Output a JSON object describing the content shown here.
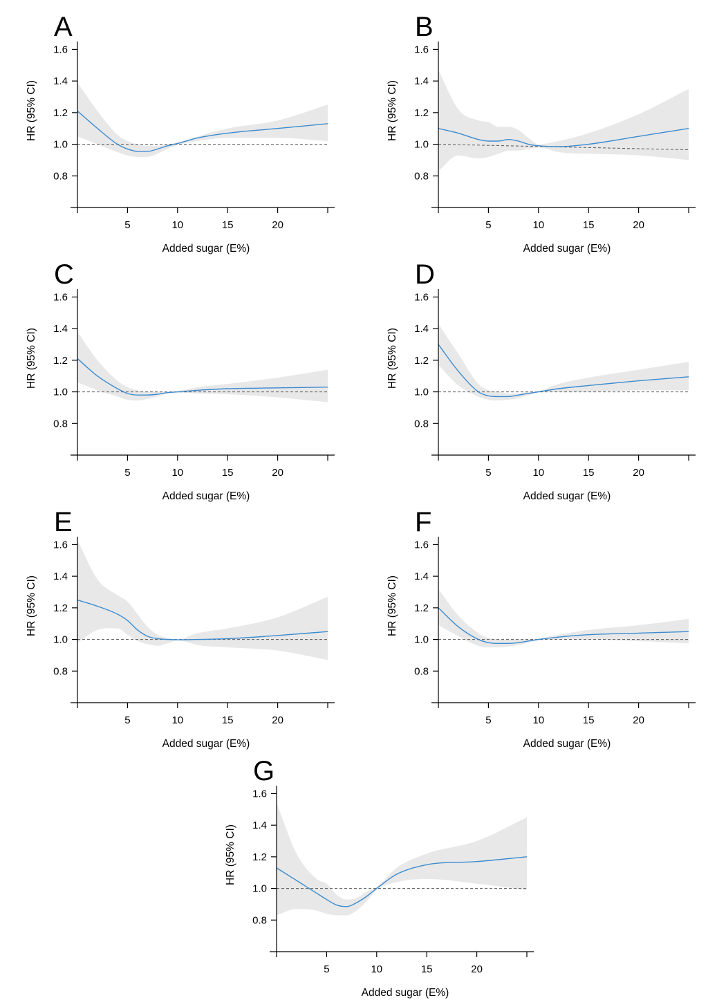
{
  "chart_data": [
    {
      "type": "line",
      "label": "A",
      "xlabel": "Added sugar (E%)",
      "ylabel": "HR (95% CI)",
      "xlim": [
        0,
        25
      ],
      "ylim": [
        0.6,
        1.65
      ],
      "xticks": [
        5,
        10,
        15,
        20
      ],
      "xtick_labels": [
        "5",
        "10",
        "15",
        "20"
      ],
      "yticks": [
        0.8,
        1.0,
        1.2,
        1.4,
        1.6
      ],
      "ytick_labels": [
        "0.8",
        "1.0",
        "1.2",
        "1.4",
        "1.6"
      ],
      "reference": [
        [
          0,
          1.0
        ],
        [
          25,
          1.0
        ]
      ],
      "series": [
        {
          "name": "HR",
          "x": [
            0,
            2,
            4,
            5,
            6,
            7,
            8,
            9,
            10,
            12,
            15,
            20,
            25
          ],
          "y": [
            1.21,
            1.1,
            1.0,
            0.97,
            0.955,
            0.955,
            0.97,
            0.99,
            1.005,
            1.04,
            1.07,
            1.1,
            1.13
          ]
        },
        {
          "name": "95% CI upper",
          "x": [
            0,
            2,
            4,
            5,
            6,
            7,
            8,
            9,
            10,
            12,
            15,
            20,
            25
          ],
          "y": [
            1.39,
            1.21,
            1.06,
            1.02,
            1.0,
            0.99,
            0.99,
            1.0,
            1.01,
            1.05,
            1.1,
            1.15,
            1.25
          ]
        },
        {
          "name": "95% CI lower",
          "x": [
            0,
            2,
            4,
            5,
            6,
            7,
            8,
            9,
            10,
            12,
            15,
            20,
            25
          ],
          "y": [
            1.05,
            1.0,
            0.95,
            0.93,
            0.92,
            0.92,
            0.94,
            0.97,
            0.995,
            1.02,
            1.04,
            1.04,
            1.02
          ]
        }
      ]
    },
    {
      "type": "line",
      "label": "B",
      "xlabel": "Added sugar (E%)",
      "ylabel": "HR (95% CI)",
      "xlim": [
        0,
        25
      ],
      "ylim": [
        0.6,
        1.65
      ],
      "xticks": [
        5,
        10,
        15,
        20
      ],
      "xtick_labels": [
        "5",
        "10",
        "15",
        "20"
      ],
      "yticks": [
        0.8,
        1.0,
        1.2,
        1.4,
        1.6
      ],
      "ytick_labels": [
        "0.8",
        "1.0",
        "1.2",
        "1.4",
        "1.6"
      ],
      "reference": [
        [
          0,
          1.0
        ],
        [
          25,
          0.965
        ]
      ],
      "series": [
        {
          "name": "HR",
          "x": [
            0,
            2,
            4,
            5,
            6,
            7,
            8,
            9,
            10,
            12,
            15,
            20,
            25
          ],
          "y": [
            1.1,
            1.07,
            1.03,
            1.02,
            1.02,
            1.03,
            1.02,
            1.0,
            0.99,
            0.985,
            1.0,
            1.05,
            1.1
          ]
        },
        {
          "name": "95% CI upper",
          "x": [
            0,
            2,
            4,
            5,
            6,
            7,
            8,
            9,
            10,
            12,
            15,
            20,
            25
          ],
          "y": [
            1.47,
            1.22,
            1.15,
            1.14,
            1.11,
            1.11,
            1.09,
            1.04,
            1.0,
            1.02,
            1.07,
            1.19,
            1.35
          ]
        },
        {
          "name": "95% CI lower",
          "x": [
            0,
            2,
            4,
            5,
            6,
            7,
            8,
            9,
            10,
            12,
            15,
            20,
            25
          ],
          "y": [
            0.83,
            0.93,
            0.91,
            0.92,
            0.94,
            0.96,
            0.96,
            0.97,
            0.98,
            0.95,
            0.94,
            0.93,
            0.9
          ]
        }
      ]
    },
    {
      "type": "line",
      "label": "C",
      "xlabel": "Added sugar (E%)",
      "ylabel": "HR (95% CI)",
      "xlim": [
        0,
        25
      ],
      "ylim": [
        0.6,
        1.65
      ],
      "xticks": [
        5,
        10,
        15,
        20
      ],
      "xtick_labels": [
        "5",
        "10",
        "15",
        "20"
      ],
      "yticks": [
        0.8,
        1.0,
        1.2,
        1.4,
        1.6
      ],
      "ytick_labels": [
        "0.8",
        "1.0",
        "1.2",
        "1.4",
        "1.6"
      ],
      "reference": [
        [
          0,
          1.0
        ],
        [
          25,
          1.0
        ]
      ],
      "series": [
        {
          "name": "HR",
          "x": [
            0,
            2,
            4,
            5,
            6,
            7,
            8,
            9,
            10,
            12,
            15,
            20,
            25
          ],
          "y": [
            1.21,
            1.1,
            1.02,
            0.99,
            0.98,
            0.98,
            0.985,
            0.995,
            1.0,
            1.01,
            1.02,
            1.025,
            1.03
          ]
        },
        {
          "name": "95% CI upper",
          "x": [
            0,
            2,
            4,
            5,
            6,
            7,
            8,
            9,
            10,
            12,
            15,
            20,
            25
          ],
          "y": [
            1.38,
            1.2,
            1.07,
            1.03,
            1.01,
            1.0,
            1.0,
            1.0,
            1.005,
            1.03,
            1.05,
            1.09,
            1.14
          ]
        },
        {
          "name": "95% CI lower",
          "x": [
            0,
            2,
            4,
            5,
            6,
            7,
            8,
            9,
            10,
            12,
            15,
            20,
            25
          ],
          "y": [
            1.06,
            1.01,
            0.97,
            0.95,
            0.945,
            0.955,
            0.97,
            0.99,
            0.995,
            0.99,
            0.985,
            0.965,
            0.935
          ]
        }
      ]
    },
    {
      "type": "line",
      "label": "D",
      "xlabel": "Added sugar (E%)",
      "ylabel": "HR (95% CI)",
      "xlim": [
        0,
        25
      ],
      "ylim": [
        0.6,
        1.65
      ],
      "xticks": [
        5,
        10,
        15,
        20
      ],
      "xtick_labels": [
        "5",
        "10",
        "15",
        "20"
      ],
      "yticks": [
        0.8,
        1.0,
        1.2,
        1.4,
        1.6
      ],
      "ytick_labels": [
        "0.8",
        "1.0",
        "1.2",
        "1.4",
        "1.6"
      ],
      "reference": [
        [
          0,
          1.0
        ],
        [
          25,
          1.0
        ]
      ],
      "series": [
        {
          "name": "HR",
          "x": [
            0,
            2,
            4,
            5,
            6,
            7,
            8,
            9,
            10,
            12,
            15,
            20,
            25
          ],
          "y": [
            1.3,
            1.13,
            1.0,
            0.975,
            0.97,
            0.97,
            0.98,
            0.99,
            1.0,
            1.02,
            1.04,
            1.07,
            1.095
          ]
        },
        {
          "name": "95% CI upper",
          "x": [
            0,
            2,
            4,
            5,
            6,
            7,
            8,
            9,
            10,
            12,
            15,
            20,
            25
          ],
          "y": [
            1.43,
            1.24,
            1.05,
            1.01,
            1.0,
            0.99,
            0.99,
            1.0,
            1.005,
            1.05,
            1.09,
            1.14,
            1.19
          ]
        },
        {
          "name": "95% CI lower",
          "x": [
            0,
            2,
            4,
            5,
            6,
            7,
            8,
            9,
            10,
            12,
            15,
            20,
            25
          ],
          "y": [
            1.17,
            1.04,
            0.97,
            0.95,
            0.945,
            0.95,
            0.96,
            0.98,
            0.995,
            1.0,
            1.0,
            1.01,
            1.01
          ]
        }
      ]
    },
    {
      "type": "line",
      "label": "E",
      "xlabel": "Added sugar (E%)",
      "ylabel": "HR (95% CI)",
      "xlim": [
        0,
        25
      ],
      "ylim": [
        0.6,
        1.65
      ],
      "xticks": [
        5,
        10,
        15,
        20
      ],
      "xtick_labels": [
        "5",
        "10",
        "15",
        "20"
      ],
      "yticks": [
        0.8,
        1.0,
        1.2,
        1.4,
        1.6
      ],
      "ytick_labels": [
        "0.8",
        "1.0",
        "1.2",
        "1.4",
        "1.6"
      ],
      "reference": [
        [
          0,
          1.0
        ],
        [
          25,
          1.0
        ]
      ],
      "series": [
        {
          "name": "HR",
          "x": [
            0,
            2,
            4,
            5,
            6,
            7,
            8,
            9,
            10,
            12,
            15,
            20,
            25
          ],
          "y": [
            1.25,
            1.21,
            1.16,
            1.12,
            1.06,
            1.02,
            1.005,
            1.0,
            0.998,
            1.0,
            1.005,
            1.025,
            1.05
          ]
        },
        {
          "name": "95% CI upper",
          "x": [
            0,
            2,
            4,
            5,
            6,
            7,
            8,
            9,
            10,
            12,
            15,
            20,
            25
          ],
          "y": [
            1.63,
            1.38,
            1.28,
            1.24,
            1.16,
            1.08,
            1.03,
            1.01,
            1.0,
            1.04,
            1.07,
            1.14,
            1.27
          ]
        },
        {
          "name": "95% CI lower",
          "x": [
            0,
            2,
            4,
            5,
            6,
            7,
            8,
            9,
            10,
            12,
            15,
            20,
            25
          ],
          "y": [
            0.98,
            1.06,
            1.07,
            1.03,
            0.99,
            0.97,
            0.96,
            0.975,
            0.995,
            0.965,
            0.95,
            0.93,
            0.87
          ]
        }
      ]
    },
    {
      "type": "line",
      "label": "F",
      "xlabel": "Added sugar (E%)",
      "ylabel": "HR (95% CI)",
      "xlim": [
        0,
        25
      ],
      "ylim": [
        0.6,
        1.65
      ],
      "xticks": [
        5,
        10,
        15,
        20
      ],
      "xtick_labels": [
        "5",
        "10",
        "15",
        "20"
      ],
      "yticks": [
        0.8,
        1.0,
        1.2,
        1.4,
        1.6
      ],
      "ytick_labels": [
        "0.8",
        "1.0",
        "1.2",
        "1.4",
        "1.6"
      ],
      "reference": [
        [
          0,
          1.0
        ],
        [
          25,
          1.0
        ]
      ],
      "series": [
        {
          "name": "HR",
          "x": [
            0,
            2,
            4,
            5,
            6,
            7,
            8,
            9,
            10,
            12,
            15,
            20,
            25
          ],
          "y": [
            1.2,
            1.08,
            1.0,
            0.98,
            0.975,
            0.975,
            0.98,
            0.99,
            1.0,
            1.015,
            1.03,
            1.04,
            1.05
          ]
        },
        {
          "name": "95% CI upper",
          "x": [
            0,
            2,
            4,
            5,
            6,
            7,
            8,
            9,
            10,
            12,
            15,
            20,
            25
          ],
          "y": [
            1.32,
            1.15,
            1.04,
            1.01,
            1.0,
            1.0,
            1.0,
            1.0,
            1.005,
            1.03,
            1.06,
            1.09,
            1.13
          ]
        },
        {
          "name": "95% CI lower",
          "x": [
            0,
            2,
            4,
            5,
            6,
            7,
            8,
            9,
            10,
            12,
            15,
            20,
            25
          ],
          "y": [
            1.09,
            1.02,
            0.96,
            0.95,
            0.95,
            0.955,
            0.965,
            0.98,
            0.995,
            1.0,
            1.0,
            0.99,
            0.975
          ]
        }
      ]
    },
    {
      "type": "line",
      "label": "G",
      "xlabel": "Added sugar (E%)",
      "ylabel": "HR (95% CI)",
      "xlim": [
        0,
        25
      ],
      "ylim": [
        0.6,
        1.65
      ],
      "xticks": [
        5,
        10,
        15,
        20
      ],
      "xtick_labels": [
        "5",
        "10",
        "15",
        "20"
      ],
      "yticks": [
        0.8,
        1.0,
        1.2,
        1.4,
        1.6
      ],
      "ytick_labels": [
        "0.8",
        "1.0",
        "1.2",
        "1.4",
        "1.6"
      ],
      "reference": [
        [
          0,
          1.0
        ],
        [
          25,
          1.0
        ]
      ],
      "series": [
        {
          "name": "HR",
          "x": [
            0,
            2,
            4,
            5,
            6,
            7,
            8,
            9,
            10,
            12,
            15,
            20,
            25
          ],
          "y": [
            1.13,
            1.05,
            0.97,
            0.93,
            0.895,
            0.885,
            0.91,
            0.95,
            1.0,
            1.09,
            1.15,
            1.17,
            1.2
          ]
        },
        {
          "name": "95% CI upper",
          "x": [
            0,
            2,
            4,
            5,
            6,
            7,
            8,
            9,
            10,
            12,
            15,
            20,
            25
          ],
          "y": [
            1.54,
            1.22,
            1.06,
            1.03,
            0.96,
            0.93,
            0.94,
            0.98,
            1.01,
            1.13,
            1.22,
            1.3,
            1.45
          ]
        },
        {
          "name": "95% CI lower",
          "x": [
            0,
            2,
            4,
            5,
            6,
            7,
            8,
            9,
            10,
            12,
            15,
            20,
            25
          ],
          "y": [
            0.83,
            0.87,
            0.86,
            0.84,
            0.83,
            0.83,
            0.86,
            0.92,
            0.99,
            1.04,
            1.06,
            1.03,
            0.99
          ]
        }
      ]
    }
  ]
}
